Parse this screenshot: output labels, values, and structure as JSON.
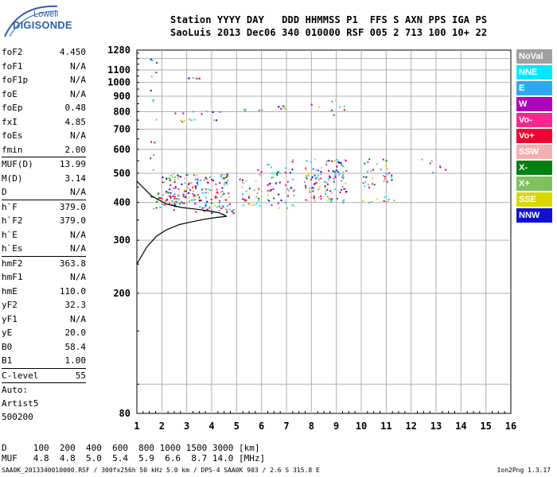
{
  "logo": {
    "line1": "Lowell",
    "line2": "DIGISONDE"
  },
  "header": {
    "line1": "Station YYYY DAY   DDD HHMMSS P1  FFS S AXN PPS IGA PS",
    "line2": "SaoLuis 2013 Dec06 340 010000 RSF 005 2 713 100 10+ 22"
  },
  "params": [
    {
      "name": "foF2",
      "value": "4.450"
    },
    {
      "name": "foF1",
      "value": "N/A"
    },
    {
      "name": "foF1p",
      "value": "N/A"
    },
    {
      "name": "foE",
      "value": "N/A"
    },
    {
      "name": "foEp",
      "value": "0.48"
    },
    {
      "name": "fxI",
      "value": "4.85"
    },
    {
      "name": "foEs",
      "value": "N/A"
    },
    {
      "name": "fmin",
      "value": "2.00"
    },
    {
      "name": "MUF(D)",
      "value": "13.99",
      "sep": true
    },
    {
      "name": "M(D)",
      "value": "3.14"
    },
    {
      "name": "D",
      "value": "N/A"
    },
    {
      "name": "h`F",
      "value": "379.0",
      "sep": true
    },
    {
      "name": "h`F2",
      "value": "379.0"
    },
    {
      "name": "h`E",
      "value": "N/A"
    },
    {
      "name": "h`Es",
      "value": "N/A"
    },
    {
      "name": "hmF2",
      "value": "363.8",
      "sep": true
    },
    {
      "name": "hmF1",
      "value": "N/A"
    },
    {
      "name": "hmE",
      "value": "110.0"
    },
    {
      "name": "yF2",
      "value": "32.3"
    },
    {
      "name": "yF1",
      "value": "N/A"
    },
    {
      "name": "yE",
      "value": "20.0"
    },
    {
      "name": "B0",
      "value": "58.4"
    },
    {
      "name": "B1",
      "value": "1.00"
    },
    {
      "name": "C-level",
      "value": "55",
      "sep": true
    }
  ],
  "auto": {
    "line1": "Auto:",
    "line2": "Artist5",
    "line3": "500200"
  },
  "legend": [
    {
      "label": "NoVal",
      "color": "#a0a0a0"
    },
    {
      "label": "NNE",
      "color": "#00e8ff"
    },
    {
      "label": "E",
      "color": "#30a8f0"
    },
    {
      "label": "W",
      "color": "#b000b8"
    },
    {
      "label": "Vo-",
      "color": "#f82890"
    },
    {
      "label": "Vo+",
      "color": "#f00030"
    },
    {
      "label": "SSW",
      "color": "#f4b0b0"
    },
    {
      "label": "X-",
      "color": "#008010"
    },
    {
      "label": "X+",
      "color": "#80c060"
    },
    {
      "label": "SSE",
      "color": "#d8d800"
    },
    {
      "label": "NNW",
      "color": "#1010d0"
    }
  ],
  "footer": {
    "line1": "D     100  200  400  600  800 1000 1500 3000 [km]",
    "line2": "MUF   4.8  4.8  5.0  5.4  5.9  6.6  8.7 14.0 [MHz]",
    "line3": "SAA0K_2013340010000.RSF / 300fx256h 50 kHz 5.0 km / DPS-4 SAA0K 903 / 2.6 S 315.8 E",
    "version": "Ion2Png 1.3.17"
  },
  "chart_data": {
    "type": "scatter",
    "title": "",
    "xlabel": "",
    "ylabel": "",
    "xlim": [
      1,
      16
    ],
    "ylim": [
      80,
      1280
    ],
    "x_ticks": [
      1,
      2,
      3,
      4,
      5,
      6,
      7,
      8,
      9,
      10,
      11,
      12,
      13,
      14,
      15,
      16
    ],
    "y_ticks": [
      80,
      200,
      300,
      400,
      500,
      600,
      700,
      800,
      900,
      1000,
      1100,
      1280
    ],
    "y_scale": "log",
    "grid": true,
    "series": [
      {
        "name": "echo clusters",
        "clusters": [
          {
            "f": [
              1.55,
              2.7
            ],
            "h": [
              380,
              440
            ],
            "density": "high"
          },
          {
            "f": [
              2.0,
              3.3
            ],
            "h": [
              390,
              500
            ],
            "density": "high"
          },
          {
            "f": [
              3.3,
              4.7
            ],
            "h": [
              370,
              500
            ],
            "density": "high"
          },
          {
            "f": [
              4.4,
              4.9
            ],
            "h": [
              365,
              390
            ],
            "density": "high"
          },
          {
            "f": [
              5.1,
              5.6
            ],
            "h": [
              380,
              480
            ],
            "density": "med"
          },
          {
            "f": [
              5.65,
              6.0
            ],
            "h": [
              380,
              520
            ],
            "density": "med"
          },
          {
            "f": [
              6.2,
              6.8
            ],
            "h": [
              380,
              540
            ],
            "density": "med"
          },
          {
            "f": [
              6.9,
              7.3
            ],
            "h": [
              385,
              560
            ],
            "density": "med"
          },
          {
            "f": [
              7.7,
              8.4
            ],
            "h": [
              400,
              560
            ],
            "density": "high"
          },
          {
            "f": [
              8.5,
              9.4
            ],
            "h": [
              400,
              560
            ],
            "density": "high"
          },
          {
            "f": [
              10.0,
              10.6
            ],
            "h": [
              450,
              560
            ],
            "density": "med"
          },
          {
            "f": [
              10.0,
              11.3
            ],
            "h": [
              400,
              420
            ],
            "density": "med"
          },
          {
            "f": [
              10.7,
              11.3
            ],
            "h": [
              470,
              560
            ],
            "density": "med"
          },
          {
            "f": [
              12.4,
              13.6
            ],
            "h": [
              500,
              560
            ],
            "density": "low"
          },
          {
            "f": [
              2.5,
              4.4
            ],
            "h": [
              790,
              810
            ],
            "density": "low"
          },
          {
            "f": [
              2.5,
              4.3
            ],
            "h": [
              740,
              760
            ],
            "density": "low"
          },
          {
            "f": [
              5.2,
              6.1
            ],
            "h": [
              805,
              820
            ],
            "density": "low"
          },
          {
            "f": [
              6.6,
              7.0
            ],
            "h": [
              820,
              840
            ],
            "density": "low"
          },
          {
            "f": [
              7.8,
              9.3
            ],
            "h": [
              780,
              880
            ],
            "density": "low"
          },
          {
            "f": [
              3.0,
              3.5
            ],
            "h": [
              1035,
              1045
            ],
            "density": "low"
          },
          {
            "f": [
              1.5,
              1.8
            ],
            "h": [
              500,
              1200
            ],
            "density": "low"
          }
        ]
      }
    ],
    "profile_curves": [
      {
        "name": "trace",
        "f": [
          1.0,
          1.6,
          2.2,
          2.8,
          3.4,
          3.9,
          4.3,
          4.6
        ],
        "h": [
          470,
          420,
          395,
          385,
          380,
          375,
          370,
          360
        ]
      },
      {
        "name": "true-height profile",
        "f": [
          1.0,
          1.4,
          1.8,
          2.2,
          2.7,
          3.2,
          3.7,
          4.2,
          4.6
        ],
        "h": [
          250,
          285,
          310,
          325,
          338,
          345,
          352,
          357,
          360
        ]
      }
    ]
  }
}
